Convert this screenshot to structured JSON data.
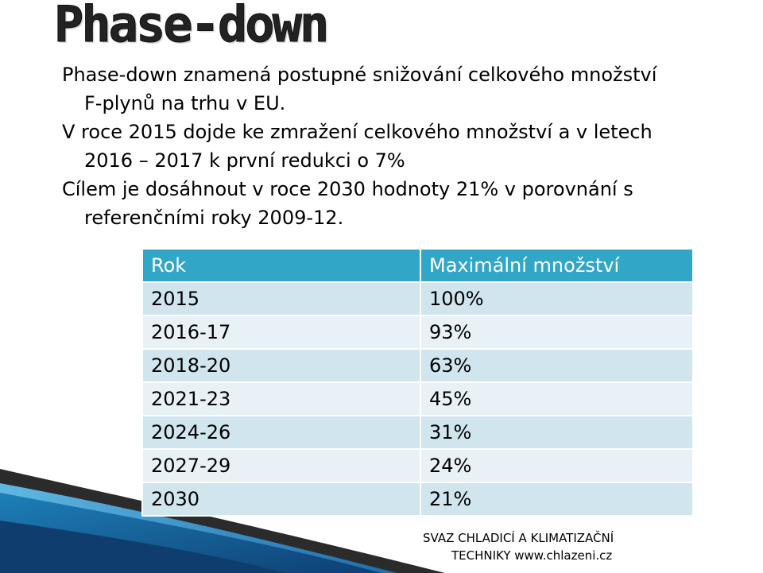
{
  "title": "Phase-down",
  "bullets": [
    {
      "line1": "Phase-down znamená postupné snižování celkového množství",
      "line2": "F-plynů na trhu v EU."
    },
    {
      "line1": "V roce 2015 dojde ke zmražení celkového množství a v letech",
      "line2": "2016 – 2017 k první redukci o 7%"
    },
    {
      "line1": "Cílem je dosáhnout v roce 2030 hodnoty 21% v porovnání s",
      "line2": "referenčními roky 2009-12."
    }
  ],
  "table": {
    "headers": [
      "Rok",
      "Maximální množství"
    ],
    "rows": [
      [
        "2015",
        "100%"
      ],
      [
        "2016-17",
        "93%"
      ],
      [
        "2018-20",
        "63%"
      ],
      [
        "2021-23",
        "45%"
      ],
      [
        "2024-26",
        "31%"
      ],
      [
        "2027-29",
        "24%"
      ],
      [
        "2030",
        "21%"
      ]
    ]
  },
  "footer": {
    "line1": "SVAZ CHLADICÍ A KLIMATIZAČNÍ",
    "line2": "TECHNIKY www.chlazeni.cz"
  },
  "colors": {
    "header": "#31a6c7",
    "row_odd": "#d1e5ee",
    "row_even": "#e8f2f6",
    "decor": "#1f4e79"
  }
}
